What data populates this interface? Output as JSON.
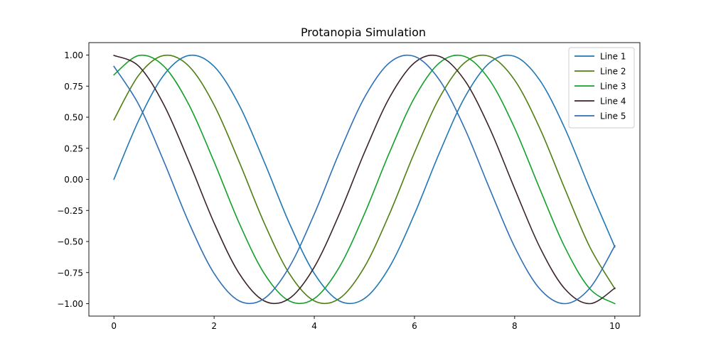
{
  "chart_data": {
    "type": "line",
    "title": "Protanopia Simulation",
    "xlabel": "",
    "ylabel": "",
    "xlim": [
      -0.5,
      10.5
    ],
    "ylim": [
      -1.1,
      1.1
    ],
    "x_ticks": [
      0,
      2,
      4,
      6,
      8,
      10
    ],
    "x_tick_labels": [
      "0",
      "2",
      "4",
      "6",
      "8",
      "10"
    ],
    "y_ticks": [
      -1.0,
      -0.75,
      -0.5,
      -0.25,
      0.0,
      0.25,
      0.5,
      0.75,
      1.0
    ],
    "y_tick_labels": [
      "−1.00",
      "−0.75",
      "−0.50",
      "−0.25",
      "0.00",
      "0.25",
      "0.50",
      "0.75",
      "1.00"
    ],
    "grid": false,
    "legend_position": "top-right",
    "x": [
      0,
      0.5,
      1,
      1.5,
      2,
      2.5,
      3,
      3.5,
      4,
      4.5,
      5,
      5.5,
      6,
      6.5,
      7,
      7.5,
      8,
      8.5,
      9,
      9.5,
      10
    ],
    "series": [
      {
        "name": "Line 1",
        "color": "#1f77b4",
        "values": [
          0.0,
          0.479,
          0.841,
          0.997,
          0.909,
          0.598,
          0.141,
          -0.351,
          -0.757,
          -0.978,
          -0.959,
          -0.706,
          -0.279,
          0.215,
          0.657,
          0.938,
          0.989,
          0.798,
          0.412,
          -0.075,
          -0.544
        ]
      },
      {
        "name": "Line 2",
        "color": "#4f7f12",
        "values": [
          0.479,
          0.841,
          0.997,
          0.909,
          0.598,
          0.141,
          -0.351,
          -0.757,
          -0.978,
          -0.959,
          -0.706,
          -0.279,
          0.215,
          0.657,
          0.938,
          0.989,
          0.798,
          0.412,
          -0.075,
          -0.544,
          -0.88
        ]
      },
      {
        "name": "Line 3",
        "color": "#14a02a",
        "values": [
          0.841,
          0.997,
          0.909,
          0.598,
          0.141,
          -0.351,
          -0.757,
          -0.978,
          -0.959,
          -0.706,
          -0.279,
          0.215,
          0.657,
          0.938,
          0.989,
          0.798,
          0.412,
          -0.075,
          -0.544,
          -0.88,
          -1.0
        ]
      },
      {
        "name": "Line 4",
        "color": "#3a2328",
        "values": [
          0.997,
          0.909,
          0.598,
          0.141,
          -0.351,
          -0.757,
          -0.978,
          -0.959,
          -0.706,
          -0.279,
          0.215,
          0.657,
          0.938,
          0.989,
          0.798,
          0.412,
          -0.075,
          -0.544,
          -0.88,
          -1.0,
          -0.875
        ]
      },
      {
        "name": "Line 5",
        "color": "#2e6fb5",
        "values": [
          0.909,
          0.598,
          0.141,
          -0.351,
          -0.757,
          -0.978,
          -0.959,
          -0.706,
          -0.279,
          0.215,
          0.657,
          0.938,
          0.989,
          0.798,
          0.412,
          -0.075,
          -0.544,
          -0.88,
          -1.0,
          -0.875,
          -0.534
        ]
      }
    ]
  }
}
